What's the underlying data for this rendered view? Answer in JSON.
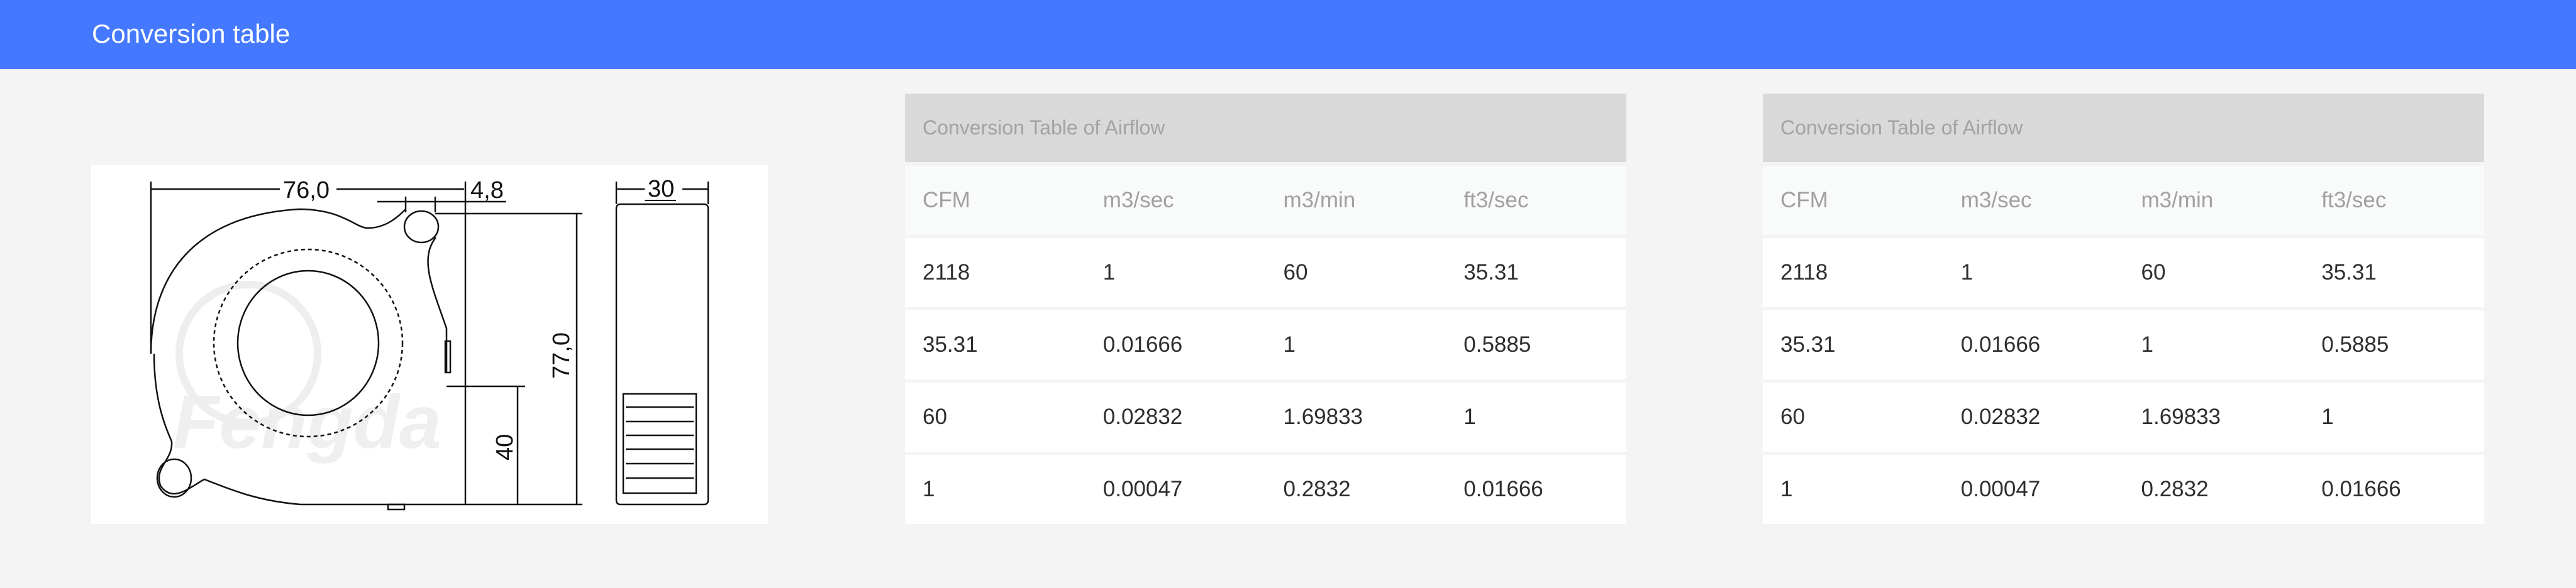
{
  "header": {
    "title": "Conversion table"
  },
  "drawing": {
    "dimensions": {
      "width": "76,0",
      "offset": "4,8",
      "height": "77,0",
      "lower": "40",
      "depth": "30"
    },
    "watermark": "Fengda"
  },
  "tables": [
    {
      "caption": "Conversion Table of Airflow",
      "columns": [
        "CFM",
        "m3/sec",
        "m3/min",
        "ft3/sec"
      ],
      "rows": [
        [
          "2118",
          "1",
          "60",
          "35.31"
        ],
        [
          "35.31",
          "0.01666",
          "1",
          "0.5885"
        ],
        [
          "60",
          "0.02832",
          "1.69833",
          "1"
        ],
        [
          "1",
          "0.00047",
          "0.2832",
          "0.01666"
        ]
      ]
    },
    {
      "caption": "Conversion Table of Airflow",
      "columns": [
        "CFM",
        "m3/sec",
        "m3/min",
        "ft3/sec"
      ],
      "rows": [
        [
          "2118",
          "1",
          "60",
          "35.31"
        ],
        [
          "35.31",
          "0.01666",
          "1",
          "0.5885"
        ],
        [
          "60",
          "0.02832",
          "1.69833",
          "1"
        ],
        [
          "1",
          "0.00047",
          "0.2832",
          "0.01666"
        ]
      ]
    }
  ],
  "colors": {
    "accent": "#4479ff",
    "background": "#f3f4f3",
    "caption_bg": "#d9d9d9"
  }
}
